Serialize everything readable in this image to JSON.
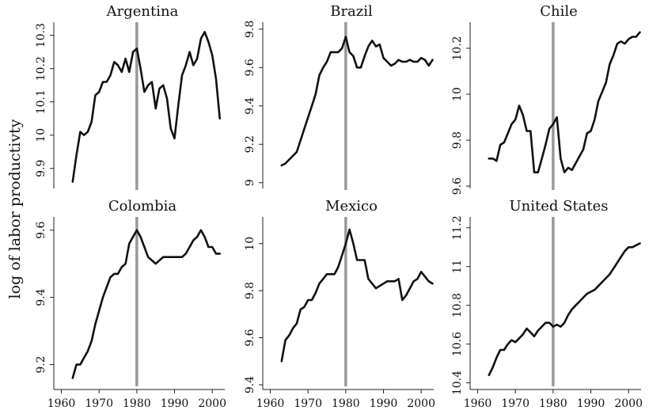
{
  "figure": {
    "ylabel": "log of labor productivty",
    "xticks": [
      1960,
      1970,
      1980,
      1990,
      2000
    ],
    "xlim": [
      1958,
      2005
    ],
    "reference_year": 1980
  },
  "chart_data": [
    {
      "type": "line",
      "title": "Argentina",
      "ylim": [
        9.84,
        10.33
      ],
      "yticks": [
        9.9,
        10,
        10.1,
        10.2,
        10.3
      ],
      "ytick_labels": [
        "9.9",
        "10",
        "10.1",
        "10.2",
        "10.3"
      ],
      "x": [
        1963,
        1964,
        1965,
        1966,
        1967,
        1968,
        1969,
        1970,
        1971,
        1972,
        1973,
        1974,
        1975,
        1976,
        1977,
        1978,
        1979,
        1980,
        1981,
        1982,
        1983,
        1984,
        1985,
        1986,
        1987,
        1988,
        1989,
        1990,
        1991,
        1992,
        1993,
        1994,
        1995,
        1996,
        1997,
        1998,
        1999,
        2000,
        2001,
        2002
      ],
      "values": [
        9.86,
        9.94,
        10.01,
        10.0,
        10.01,
        10.04,
        10.12,
        10.13,
        10.16,
        10.16,
        10.18,
        10.22,
        10.21,
        10.19,
        10.23,
        10.19,
        10.25,
        10.26,
        10.2,
        10.13,
        10.15,
        10.16,
        10.08,
        10.14,
        10.15,
        10.11,
        10.02,
        9.99,
        10.09,
        10.18,
        10.21,
        10.25,
        10.21,
        10.23,
        10.29,
        10.31,
        10.28,
        10.24,
        10.17,
        10.05
      ]
    },
    {
      "type": "line",
      "title": "Brazil",
      "ylim": [
        8.97,
        9.82
      ],
      "yticks": [
        9,
        9.2,
        9.4,
        9.6,
        9.8
      ],
      "ytick_labels": [
        "9",
        "9.2",
        "9.4",
        "9.6",
        "9.8"
      ],
      "x": [
        1963,
        1964,
        1965,
        1966,
        1967,
        1968,
        1969,
        1970,
        1971,
        1972,
        1973,
        1974,
        1975,
        1976,
        1977,
        1978,
        1979,
        1980,
        1981,
        1982,
        1983,
        1984,
        1985,
        1986,
        1987,
        1988,
        1989,
        1990,
        1991,
        1992,
        1993,
        1994,
        1995,
        1996,
        1997,
        1998,
        1999,
        2000,
        2001,
        2002,
        2003
      ],
      "values": [
        9.09,
        9.1,
        9.12,
        9.14,
        9.16,
        9.22,
        9.28,
        9.34,
        9.4,
        9.46,
        9.56,
        9.6,
        9.63,
        9.68,
        9.68,
        9.68,
        9.7,
        9.76,
        9.68,
        9.66,
        9.6,
        9.6,
        9.66,
        9.71,
        9.74,
        9.71,
        9.72,
        9.65,
        9.63,
        9.61,
        9.62,
        9.64,
        9.63,
        9.63,
        9.64,
        9.63,
        9.63,
        9.65,
        9.64,
        9.61,
        9.64
      ]
    },
    {
      "type": "line",
      "title": "Chile",
      "ylim": [
        9.59,
        10.3
      ],
      "yticks": [
        9.6,
        9.8,
        10,
        10.2
      ],
      "ytick_labels": [
        "9.6",
        "9.8",
        "10",
        "10.2"
      ],
      "x": [
        1963,
        1964,
        1965,
        1966,
        1967,
        1968,
        1969,
        1970,
        1971,
        1972,
        1973,
        1974,
        1975,
        1976,
        1977,
        1978,
        1979,
        1980,
        1981,
        1982,
        1983,
        1984,
        1985,
        1986,
        1987,
        1988,
        1989,
        1990,
        1991,
        1992,
        1993,
        1994,
        1995,
        1996,
        1997,
        1998,
        1999,
        2000,
        2001,
        2002,
        2003
      ],
      "values": [
        9.72,
        9.72,
        9.71,
        9.78,
        9.79,
        9.83,
        9.87,
        9.89,
        9.95,
        9.91,
        9.84,
        9.84,
        9.66,
        9.66,
        9.72,
        9.78,
        9.85,
        9.87,
        9.9,
        9.72,
        9.66,
        9.68,
        9.67,
        9.7,
        9.73,
        9.76,
        9.83,
        9.84,
        9.89,
        9.97,
        10.01,
        10.05,
        10.13,
        10.17,
        10.22,
        10.23,
        10.22,
        10.24,
        10.25,
        10.25,
        10.27
      ]
    },
    {
      "type": "line",
      "title": "Colombia",
      "ylim": [
        9.14,
        9.63
      ],
      "yticks": [
        9.2,
        9.4,
        9.6
      ],
      "ytick_labels": [
        "9.2",
        "9.4",
        "9.6"
      ],
      "x": [
        1963,
        1964,
        1965,
        1966,
        1967,
        1968,
        1969,
        1970,
        1971,
        1972,
        1973,
        1974,
        1975,
        1976,
        1977,
        1978,
        1979,
        1980,
        1981,
        1982,
        1983,
        1984,
        1985,
        1986,
        1987,
        1988,
        1989,
        1990,
        1991,
        1992,
        1993,
        1994,
        1995,
        1996,
        1997,
        1998,
        1999,
        2000,
        2001,
        2002
      ],
      "values": [
        9.16,
        9.2,
        9.2,
        9.22,
        9.24,
        9.27,
        9.32,
        9.36,
        9.4,
        9.43,
        9.46,
        9.47,
        9.47,
        9.49,
        9.5,
        9.56,
        9.58,
        9.6,
        9.58,
        9.55,
        9.52,
        9.51,
        9.5,
        9.51,
        9.52,
        9.52,
        9.52,
        9.52,
        9.52,
        9.52,
        9.53,
        9.55,
        9.57,
        9.58,
        9.6,
        9.58,
        9.55,
        9.55,
        9.53,
        9.53
      ]
    },
    {
      "type": "line",
      "title": "Mexico",
      "ylim": [
        9.4,
        10.1
      ],
      "yticks": [
        9.4,
        9.6,
        9.8,
        10
      ],
      "ytick_labels": [
        "9.4",
        "9.6",
        "9.8",
        "10"
      ],
      "x": [
        1963,
        1964,
        1965,
        1966,
        1967,
        1968,
        1969,
        1970,
        1971,
        1972,
        1973,
        1974,
        1975,
        1976,
        1977,
        1978,
        1979,
        1980,
        1981,
        1982,
        1983,
        1984,
        1985,
        1986,
        1987,
        1988,
        1989,
        1990,
        1991,
        1992,
        1993,
        1994,
        1995,
        1996,
        1997,
        1998,
        1999,
        2000,
        2001,
        2002,
        2003
      ],
      "values": [
        9.5,
        9.59,
        9.61,
        9.64,
        9.66,
        9.72,
        9.73,
        9.76,
        9.76,
        9.79,
        9.83,
        9.85,
        9.87,
        9.87,
        9.87,
        9.9,
        9.95,
        10.0,
        10.06,
        10.0,
        9.93,
        9.93,
        9.93,
        9.85,
        9.83,
        9.81,
        9.82,
        9.83,
        9.84,
        9.84,
        9.84,
        9.85,
        9.76,
        9.78,
        9.81,
        9.84,
        9.85,
        9.88,
        9.86,
        9.84,
        9.83
      ]
    },
    {
      "type": "line",
      "title": "United States",
      "ylim": [
        10.39,
        11.24
      ],
      "yticks": [
        10.4,
        10.6,
        10.8,
        11,
        11.2
      ],
      "ytick_labels": [
        "10.4",
        "10.6",
        "10.8",
        "11",
        "11.2"
      ],
      "x": [
        1963,
        1964,
        1965,
        1966,
        1967,
        1968,
        1969,
        1970,
        1971,
        1972,
        1973,
        1974,
        1975,
        1976,
        1977,
        1978,
        1979,
        1980,
        1981,
        1982,
        1983,
        1984,
        1985,
        1986,
        1987,
        1988,
        1989,
        1990,
        1991,
        1992,
        1993,
        1994,
        1995,
        1996,
        1997,
        1998,
        1999,
        2000,
        2001,
        2002,
        2003
      ],
      "values": [
        10.44,
        10.48,
        10.53,
        10.57,
        10.57,
        10.6,
        10.62,
        10.61,
        10.63,
        10.65,
        10.68,
        10.66,
        10.64,
        10.67,
        10.69,
        10.71,
        10.71,
        10.69,
        10.7,
        10.69,
        10.71,
        10.75,
        10.78,
        10.8,
        10.82,
        10.84,
        10.86,
        10.87,
        10.88,
        10.9,
        10.92,
        10.94,
        10.96,
        10.99,
        11.02,
        11.05,
        11.08,
        11.1,
        11.1,
        11.11,
        11.12
      ]
    }
  ]
}
